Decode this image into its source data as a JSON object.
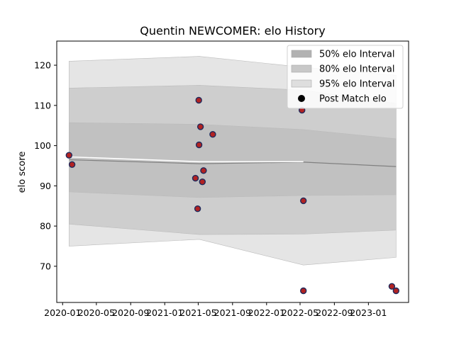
{
  "chart_data": {
    "type": "line",
    "title": "Quentin NEWCOMER: elo History",
    "xlabel": "",
    "ylabel": "elo score",
    "xlim": [
      "2019-12-11",
      "2023-05-25"
    ],
    "ylim": [
      61,
      126
    ],
    "x_ticks": [
      {
        "date": "2020-01-01",
        "label": "2020-01"
      },
      {
        "date": "2020-05-01",
        "label": "2020-05"
      },
      {
        "date": "2020-09-01",
        "label": "2020-09"
      },
      {
        "date": "2021-01-01",
        "label": "2021-01"
      },
      {
        "date": "2021-05-01",
        "label": "2021-05"
      },
      {
        "date": "2021-09-01",
        "label": "2021-09"
      },
      {
        "date": "2022-01-01",
        "label": "2022-01"
      },
      {
        "date": "2022-05-01",
        "label": "2022-05"
      },
      {
        "date": "2022-09-01",
        "label": "2022-09"
      },
      {
        "date": "2023-01-01",
        "label": "2023-01"
      }
    ],
    "y_ticks": [
      70,
      80,
      90,
      100,
      110,
      120
    ],
    "legend_placement": "top-right",
    "legend": [
      {
        "label": "50% elo Interval",
        "kind": "patch",
        "color": "#b2b2b2"
      },
      {
        "label": "80% elo Interval",
        "kind": "patch",
        "color": "#c8c8c8"
      },
      {
        "label": "95% elo Interval",
        "kind": "patch",
        "color": "#dedede"
      },
      {
        "label": "Post Match elo",
        "kind": "marker",
        "color": "#000000"
      }
    ],
    "mean_line": {
      "color": "#808080",
      "dates": [
        "2020-01-24",
        "2021-05-05",
        "2022-05-13",
        "2023-04-10"
      ],
      "values": [
        96.5,
        95.5,
        95.9,
        94.8
      ]
    },
    "white_line": {
      "color": "#ffffff",
      "dates": [
        "2020-01-24",
        "2021-05-05",
        "2022-05-13"
      ],
      "values": [
        97.2,
        96.0,
        96.0
      ]
    },
    "bands": [
      {
        "name": "95% elo Interval",
        "color": "#e0e0e0",
        "dates": [
          "2020-01-24",
          "2021-05-05",
          "2022-05-13",
          "2023-04-10"
        ],
        "lower": [
          75.0,
          76.7,
          70.3,
          72.2
        ],
        "upper": [
          121.0,
          122.2,
          119.5,
          117.5
        ]
      },
      {
        "name": "80% elo Interval",
        "color": "#cacaca",
        "dates": [
          "2020-01-24",
          "2021-05-05",
          "2022-05-13",
          "2023-04-10"
        ],
        "lower": [
          80.5,
          77.9,
          78.0,
          79.0
        ],
        "upper": [
          114.3,
          115.0,
          113.8,
          110.5
        ]
      },
      {
        "name": "50% elo Interval",
        "color": "#bebebe",
        "dates": [
          "2020-01-24",
          "2021-05-05",
          "2022-05-13",
          "2023-04-10"
        ],
        "lower": [
          88.5,
          87.1,
          87.6,
          87.8
        ],
        "upper": [
          105.7,
          105.3,
          104.0,
          101.7
        ]
      }
    ],
    "series": [
      {
        "name": "Post Match elo",
        "marker_fill": "#b22222",
        "marker_edge": "#1f2a5c",
        "points": [
          {
            "date": "2020-01-24",
            "value": 97.6
          },
          {
            "date": "2020-02-04",
            "value": 95.3
          },
          {
            "date": "2021-04-21",
            "value": 91.9
          },
          {
            "date": "2021-04-29",
            "value": 84.3
          },
          {
            "date": "2021-05-03",
            "value": 111.3
          },
          {
            "date": "2021-05-04",
            "value": 100.2
          },
          {
            "date": "2021-05-09",
            "value": 104.7
          },
          {
            "date": "2021-05-16",
            "value": 91.0
          },
          {
            "date": "2021-05-20",
            "value": 93.8
          },
          {
            "date": "2021-06-22",
            "value": 102.8
          },
          {
            "date": "2022-05-08",
            "value": 108.8
          },
          {
            "date": "2022-05-13",
            "value": 86.3
          },
          {
            "date": "2022-05-13",
            "value": 63.9
          },
          {
            "date": "2023-03-26",
            "value": 65.0
          },
          {
            "date": "2023-04-10",
            "value": 63.9
          }
        ]
      }
    ]
  }
}
